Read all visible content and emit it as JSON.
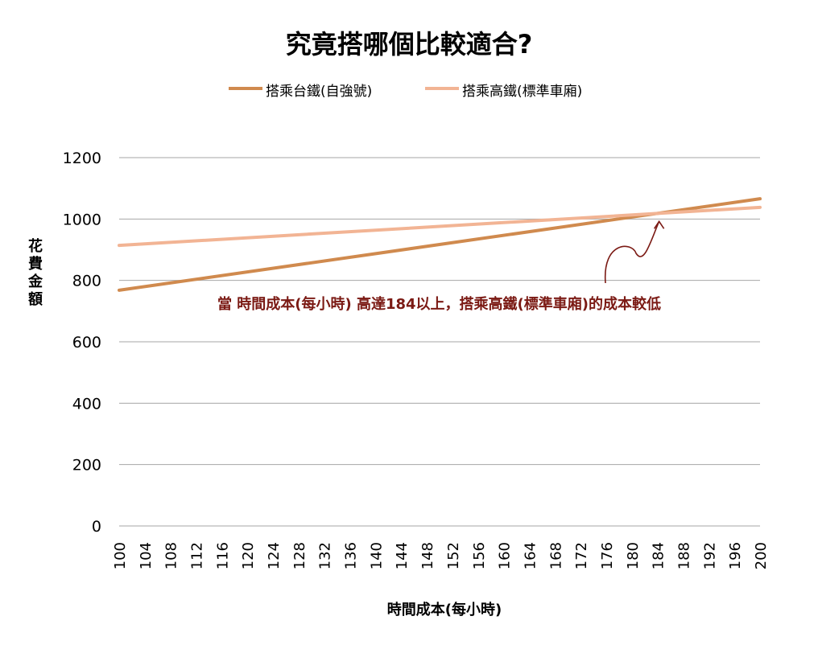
{
  "chart_data": {
    "type": "line",
    "title": "究竟搭哪個比較適合?",
    "xlabel": "時間成本(每小時)",
    "ylabel": "花費金額",
    "ylim": [
      0,
      1200
    ],
    "yticks": [
      "0",
      "200",
      "400",
      "600",
      "800",
      "1000",
      "1200"
    ],
    "xlim": [
      100,
      200
    ],
    "xticks": [
      "100",
      "104",
      "108",
      "112",
      "116",
      "120",
      "124",
      "128",
      "132",
      "136",
      "140",
      "144",
      "148",
      "152",
      "156",
      "160",
      "164",
      "168",
      "172",
      "176",
      "180",
      "184",
      "188",
      "192",
      "196",
      "200"
    ],
    "grid": true,
    "legend_position": "top",
    "series": [
      {
        "name": "搭乘台鐵(自強號)",
        "color": "#d08a4e",
        "x": [
          100,
          200
        ],
        "y": [
          768,
          1066
        ]
      },
      {
        "name": "搭乘高鐵(標準車廂)",
        "color": "#f2b494",
        "x": [
          100,
          200
        ],
        "y": [
          914,
          1038
        ]
      }
    ],
    "annotation": {
      "text": "當 時間成本(每小時) 高達184以上，搭乘高鐵(標準車廂)的成本較低",
      "color": "#7b1a14",
      "target_x": 184
    }
  }
}
